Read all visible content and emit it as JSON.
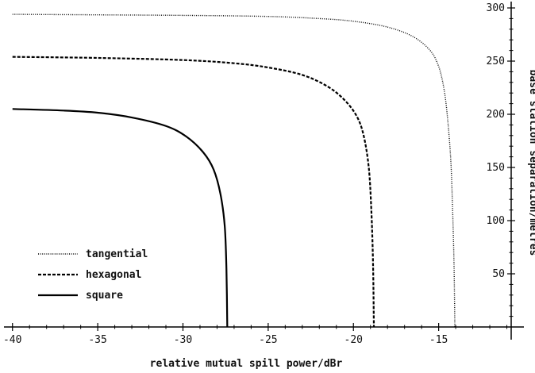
{
  "chart_data": {
    "type": "line",
    "title": "",
    "xlabel": "relative mutual spill power/dBr",
    "ylabel": "base station separation/metres",
    "xlim": [
      -40.5,
      -10
    ],
    "ylim": [
      0,
      300
    ],
    "xticks": [
      -40,
      -35,
      -30,
      -25,
      -20,
      -15
    ],
    "xtick_labels": [
      "-40",
      "-35",
      "-30",
      "-25",
      "-20",
      "-15"
    ],
    "yticks": [
      50,
      100,
      150,
      200,
      250,
      300
    ],
    "ytick_labels": [
      "50",
      "100",
      "150",
      "200",
      "250",
      "300"
    ],
    "grid": false,
    "legend_position": "bottom-left",
    "series": [
      {
        "name": "tangential",
        "style": "dotted",
        "points": [
          [
            -40,
            294
          ],
          [
            -35,
            293.5
          ],
          [
            -30,
            293
          ],
          [
            -25,
            292
          ],
          [
            -22,
            290
          ],
          [
            -20,
            287.5
          ],
          [
            -18,
            282
          ],
          [
            -16.5,
            273
          ],
          [
            -15.5,
            260
          ],
          [
            -15,
            245
          ],
          [
            -14.7,
            225
          ],
          [
            -14.5,
            200
          ],
          [
            -14.3,
            160
          ],
          [
            -14.2,
            120
          ],
          [
            -14.1,
            60
          ],
          [
            -14.05,
            0
          ]
        ]
      },
      {
        "name": "hexagonal",
        "style": "dashed",
        "points": [
          [
            -40,
            254
          ],
          [
            -35,
            253
          ],
          [
            -30,
            251
          ],
          [
            -27,
            248
          ],
          [
            -25,
            244
          ],
          [
            -23,
            237
          ],
          [
            -21.5,
            226
          ],
          [
            -20.5,
            213
          ],
          [
            -19.8,
            198
          ],
          [
            -19.4,
            180
          ],
          [
            -19.1,
            150
          ],
          [
            -18.95,
            110
          ],
          [
            -18.85,
            60
          ],
          [
            -18.8,
            0
          ]
        ]
      },
      {
        "name": "square",
        "style": "solid",
        "points": [
          [
            -40,
            205
          ],
          [
            -37,
            203.5
          ],
          [
            -35,
            201.5
          ],
          [
            -33,
            197
          ],
          [
            -31,
            189
          ],
          [
            -29.8,
            179
          ],
          [
            -28.8,
            164
          ],
          [
            -28.2,
            148
          ],
          [
            -27.8,
            125
          ],
          [
            -27.55,
            95
          ],
          [
            -27.45,
            55
          ],
          [
            -27.4,
            0
          ]
        ]
      }
    ]
  }
}
